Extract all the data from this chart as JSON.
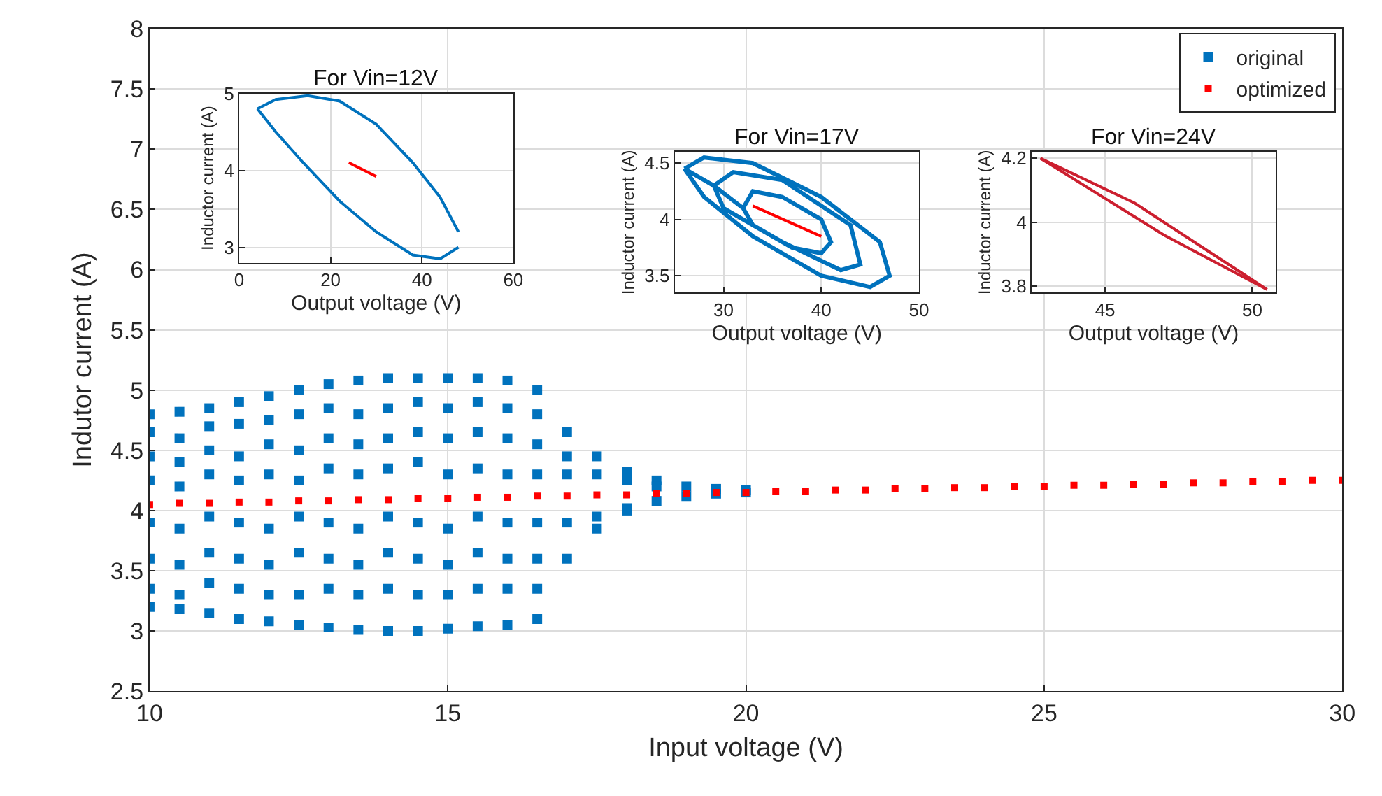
{
  "chart_data": [
    {
      "type": "scatter",
      "xlabel": "Input voltage (V)",
      "ylabel": "Indutor current (A)",
      "xlim": [
        10,
        30
      ],
      "xticks": [
        10,
        15,
        20,
        25,
        30
      ],
      "ylim": [
        2.5,
        8
      ],
      "yticks": [
        2.5,
        3,
        3.5,
        4,
        4.5,
        5,
        5.5,
        6,
        6.5,
        7,
        7.5,
        8
      ],
      "grid": true,
      "legend": "top right",
      "marker": "square",
      "series": [
        {
          "name": "original",
          "color": "#0072bd",
          "x": [
            10,
            10,
            10,
            10,
            10,
            10,
            10,
            10,
            10.5,
            10.5,
            10.5,
            10.5,
            10.5,
            10.5,
            10.5,
            10.5,
            11,
            11,
            11,
            11,
            11,
            11,
            11,
            11,
            11.5,
            11.5,
            11.5,
            11.5,
            11.5,
            11.5,
            11.5,
            11.5,
            12,
            12,
            12,
            12,
            12,
            12,
            12,
            12,
            12.5,
            12.5,
            12.5,
            12.5,
            12.5,
            12.5,
            12.5,
            12.5,
            13,
            13,
            13,
            13,
            13,
            13,
            13,
            13,
            13.5,
            13.5,
            13.5,
            13.5,
            13.5,
            13.5,
            13.5,
            13.5,
            14,
            14,
            14,
            14,
            14,
            14,
            14,
            14,
            14.5,
            14.5,
            14.5,
            14.5,
            14.5,
            14.5,
            14.5,
            14.5,
            15,
            15,
            15,
            15,
            15,
            15,
            15,
            15,
            15.5,
            15.5,
            15.5,
            15.5,
            15.5,
            15.5,
            15.5,
            15.5,
            16,
            16,
            16,
            16,
            16,
            16,
            16,
            16,
            16.5,
            16.5,
            16.5,
            16.5,
            16.5,
            16.5,
            16.5,
            16.5,
            17,
            17,
            17,
            17,
            17,
            17.5,
            17.5,
            17.5,
            17.5,
            18,
            18,
            18,
            18,
            18.5,
            18.5,
            18.5,
            19,
            19,
            19.5,
            19.5,
            20,
            20
          ],
          "values": [
            4.8,
            4.65,
            4.45,
            4.25,
            3.9,
            3.6,
            3.35,
            3.2,
            4.82,
            4.6,
            4.4,
            4.2,
            3.85,
            3.55,
            3.3,
            3.18,
            4.85,
            4.7,
            4.5,
            4.3,
            3.95,
            3.65,
            3.4,
            3.15,
            4.9,
            4.72,
            4.45,
            4.25,
            3.9,
            3.6,
            3.35,
            3.1,
            4.95,
            4.75,
            4.55,
            4.3,
            3.85,
            3.55,
            3.3,
            3.08,
            5.0,
            4.8,
            4.5,
            4.25,
            3.95,
            3.65,
            3.3,
            3.05,
            5.05,
            4.85,
            4.6,
            4.35,
            3.9,
            3.6,
            3.35,
            3.03,
            5.08,
            4.8,
            4.55,
            4.3,
            3.85,
            3.55,
            3.3,
            3.01,
            5.1,
            4.85,
            4.6,
            4.35,
            3.95,
            3.65,
            3.35,
            3.0,
            5.1,
            4.9,
            4.65,
            4.4,
            3.9,
            3.6,
            3.3,
            3.0,
            5.1,
            4.85,
            4.6,
            4.3,
            3.85,
            3.55,
            3.3,
            3.02,
            5.1,
            4.9,
            4.65,
            4.35,
            3.95,
            3.65,
            3.35,
            3.04,
            5.08,
            4.85,
            4.6,
            4.3,
            3.9,
            3.6,
            3.35,
            3.05,
            5.0,
            4.8,
            4.55,
            4.3,
            3.9,
            3.6,
            3.35,
            3.1,
            4.65,
            4.45,
            4.3,
            3.9,
            3.6,
            4.45,
            4.3,
            3.95,
            3.85,
            4.32,
            4.25,
            4.02,
            4.0,
            4.25,
            4.2,
            4.08,
            4.2,
            4.12,
            4.18,
            4.14,
            4.17,
            4.15
          ]
        },
        {
          "name": "optimized",
          "color": "#ff0000",
          "x": [
            10,
            10.5,
            11,
            11.5,
            12,
            12.5,
            13,
            13.5,
            14,
            14.5,
            15,
            15.5,
            16,
            16.5,
            17,
            17.5,
            18,
            18.5,
            19,
            19.5,
            20,
            20.5,
            21,
            21.5,
            22,
            22.5,
            23,
            23.5,
            24,
            24.5,
            25,
            25.5,
            26,
            26.5,
            27,
            27.5,
            28,
            28.5,
            29,
            29.5,
            30
          ],
          "values": [
            4.05,
            4.06,
            4.06,
            4.07,
            4.07,
            4.08,
            4.08,
            4.09,
            4.09,
            4.1,
            4.1,
            4.11,
            4.11,
            4.12,
            4.12,
            4.13,
            4.13,
            4.14,
            4.14,
            4.15,
            4.15,
            4.16,
            4.16,
            4.17,
            4.17,
            4.18,
            4.18,
            4.19,
            4.19,
            4.2,
            4.2,
            4.21,
            4.21,
            4.22,
            4.22,
            4.23,
            4.23,
            4.24,
            4.24,
            4.25,
            4.25
          ]
        }
      ]
    },
    {
      "type": "line",
      "title": "For Vin=12V",
      "xlabel": "Output voltage (V)",
      "ylabel": "Inductor current (A)",
      "xlim": [
        0,
        60
      ],
      "xticks": [
        0,
        20,
        40,
        60
      ],
      "ylim": [
        2.8,
        5
      ],
      "yticks": [
        3,
        4,
        5
      ],
      "grid": true,
      "line_style": "solid",
      "series": [
        {
          "color": "#0072bd",
          "x": [
            4,
            8,
            15,
            22,
            30,
            38,
            44,
            48
          ],
          "values": [
            4.8,
            4.92,
            4.97,
            4.9,
            4.6,
            4.1,
            3.65,
            3.2
          ]
        },
        {
          "color": "#0072bd",
          "x": [
            4,
            8,
            14,
            22,
            30,
            38,
            44,
            48
          ],
          "values": [
            4.8,
            4.5,
            4.1,
            3.6,
            3.2,
            2.9,
            2.85,
            3.0
          ]
        },
        {
          "color": "#ff0000",
          "x": [
            24,
            30
          ],
          "values": [
            4.1,
            3.92
          ]
        }
      ]
    },
    {
      "type": "line",
      "title": "For Vin=17V",
      "xlabel": "Output voltage (V)",
      "ylabel": "Inductor current (A)",
      "xlim": [
        25,
        50
      ],
      "xticks": [
        30,
        40,
        50
      ],
      "ylim": [
        3.35,
        4.6
      ],
      "yticks": [
        3.5,
        4,
        4.5
      ],
      "grid": true,
      "line_style": "solid",
      "series": [
        {
          "color": "#0072bd",
          "x": [
            26,
            28,
            33,
            40,
            46,
            47,
            45,
            40,
            33,
            28,
            26,
            29,
            31,
            36,
            43,
            44,
            42,
            36,
            30,
            29,
            32,
            33,
            36,
            40,
            41,
            40,
            37,
            33,
            32
          ],
          "values": [
            4.45,
            4.55,
            4.5,
            4.2,
            3.8,
            3.5,
            3.4,
            3.5,
            3.85,
            4.2,
            4.45,
            4.3,
            4.42,
            4.35,
            3.95,
            3.6,
            3.55,
            3.8,
            4.1,
            4.3,
            4.1,
            4.25,
            4.2,
            4.0,
            3.8,
            3.7,
            3.75,
            3.95,
            4.1
          ]
        },
        {
          "color": "#ff0000",
          "x": [
            33,
            40
          ],
          "values": [
            4.12,
            3.85
          ]
        }
      ]
    },
    {
      "type": "line",
      "title": "For Vin=24V",
      "xlabel": "Output voltage (V)",
      "ylabel": "Inductor current (A)",
      "xlim": [
        42.5,
        50.8
      ],
      "xticks": [
        45,
        50
      ],
      "ylim": [
        3.78,
        4.22
      ],
      "yticks": [
        3.8,
        4,
        4.2
      ],
      "grid": true,
      "line_style": "solid",
      "series": [
        {
          "color": "#cc1f2f",
          "x": [
            42.8,
            46,
            50.5
          ],
          "values": [
            4.2,
            4.06,
            3.79
          ]
        },
        {
          "color": "#cc1f2f",
          "x": [
            42.8,
            47,
            50.5
          ],
          "values": [
            4.2,
            3.96,
            3.79
          ]
        }
      ]
    }
  ]
}
